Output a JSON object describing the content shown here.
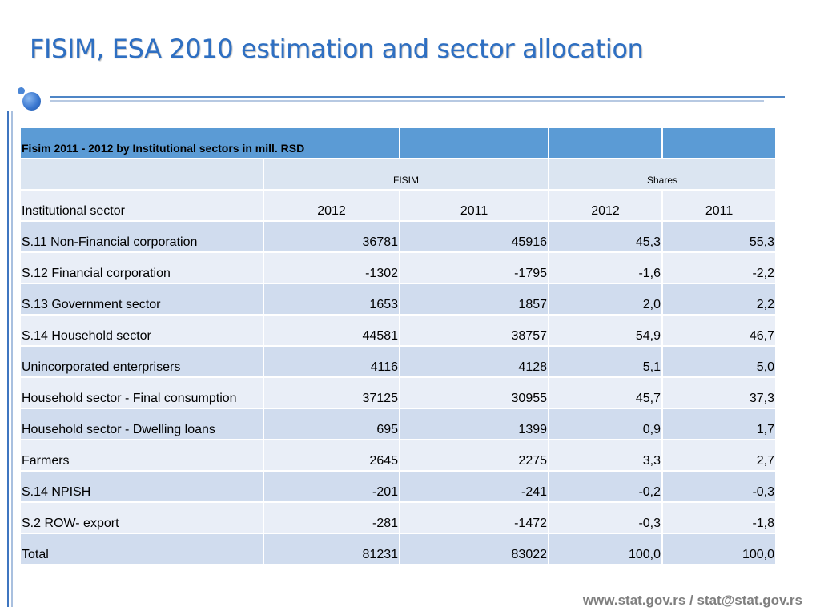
{
  "title": "FISIM, ESA 2010 estimation and sector allocation",
  "table": {
    "caption": "Fisim 2011 - 2012 by Institutional sectors in mill. RSD",
    "group_headers": {
      "fisim": "FISIM",
      "shares": "Shares"
    },
    "column_headers": [
      "Institutional sector",
      "2012",
      "2011",
      "2012",
      "2011"
    ],
    "rows": [
      {
        "sector": "S.11 Non-Financial corporation",
        "fisim_2012": "36781",
        "fisim_2011": "45916",
        "shares_2012": "45,3",
        "shares_2011": "55,3"
      },
      {
        "sector": "S.12 Financial  corporation",
        "fisim_2012": "-1302",
        "fisim_2011": "-1795",
        "shares_2012": "-1,6",
        "shares_2011": "-2,2"
      },
      {
        "sector": "S.13 Government sector",
        "fisim_2012": "1653",
        "fisim_2011": "1857",
        "shares_2012": "2,0",
        "shares_2011": "2,2"
      },
      {
        "sector": "S.14 Household sector",
        "fisim_2012": "44581",
        "fisim_2011": "38757",
        "shares_2012": "54,9",
        "shares_2011": "46,7"
      },
      {
        "sector": "Unincorporated enterprisers",
        "fisim_2012": "4116",
        "fisim_2011": "4128",
        "shares_2012": "5,1",
        "shares_2011": "5,0"
      },
      {
        "sector": "Household sector - Final consumption",
        "fisim_2012": "37125",
        "fisim_2011": "30955",
        "shares_2012": "45,7",
        "shares_2011": "37,3"
      },
      {
        "sector": "Household sector - Dwelling loans",
        "fisim_2012": "695",
        "fisim_2011": "1399",
        "shares_2012": "0,9",
        "shares_2011": "1,7"
      },
      {
        "sector": "Farmers",
        "fisim_2012": "2645",
        "fisim_2011": "2275",
        "shares_2012": "3,3",
        "shares_2011": "2,7"
      },
      {
        "sector": "S.14 NPISH",
        "fisim_2012": "-201",
        "fisim_2011": "-241",
        "shares_2012": "-0,2",
        "shares_2011": "-0,3"
      },
      {
        "sector": "S.2 ROW- export",
        "fisim_2012": "-281",
        "fisim_2011": "-1472",
        "shares_2012": "-0,3",
        "shares_2011": "-1,8"
      },
      {
        "sector": "Total",
        "fisim_2012": "81231",
        "fisim_2011": "83022",
        "shares_2012": "100,0",
        "shares_2011": "100,0"
      }
    ]
  },
  "footer": {
    "contact": "www.stat.gov.rs / stat@stat.gov.rs"
  },
  "colors": {
    "title": "#2e6fc2",
    "header_fill": "#5b9bd5",
    "row_light": "#e9eef7",
    "row_dark": "#d0dcee",
    "footer_text": "#7f7f7f"
  }
}
